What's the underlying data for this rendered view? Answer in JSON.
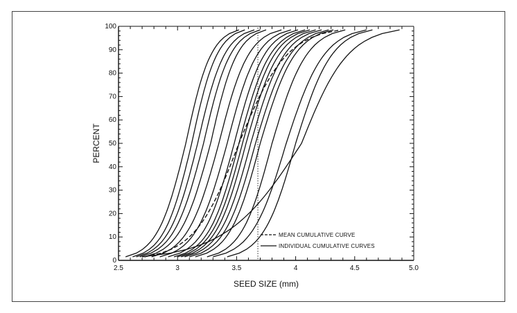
{
  "chart_data": {
    "type": "line",
    "title": "",
    "xlabel": "SEED SIZE (mm)",
    "ylabel": "PERCENT",
    "xlim": [
      2.5,
      5.0
    ],
    "ylim": [
      0,
      100
    ],
    "x_ticks": [
      2.5,
      3,
      3.5,
      4,
      4.5,
      5.0
    ],
    "x_tick_labels": [
      "2.5",
      "3",
      "3.5",
      "4",
      "4.5",
      "5.0"
    ],
    "y_ticks": [
      0,
      10,
      20,
      30,
      40,
      50,
      60,
      70,
      80,
      90,
      100
    ],
    "y_tick_labels": [
      "0",
      "10",
      "20",
      "30",
      "40",
      "50",
      "60",
      "70",
      "80",
      "90",
      "100"
    ],
    "grid": false,
    "reference_line_x": 3.68,
    "legend": {
      "placement": "bottom-right",
      "entries": [
        {
          "label": "MEAN CUMULATIVE CURVE",
          "style": "dashed"
        },
        {
          "label": "INDIVIDUAL CUMULATIVE CURVES",
          "style": "solid"
        }
      ]
    },
    "mean_curve": {
      "start": 2.72,
      "mid": 3.52,
      "end": 4.38
    },
    "individual_curves": [
      {
        "start": 2.56,
        "mid": 3.07,
        "end": 3.52
      },
      {
        "start": 2.62,
        "mid": 3.12,
        "end": 3.57
      },
      {
        "start": 2.65,
        "mid": 3.17,
        "end": 3.65
      },
      {
        "start": 2.68,
        "mid": 3.22,
        "end": 3.7
      },
      {
        "start": 2.72,
        "mid": 3.28,
        "end": 3.75
      },
      {
        "start": 2.78,
        "mid": 3.35,
        "end": 3.88
      },
      {
        "start": 2.85,
        "mid": 3.42,
        "end": 3.96
      },
      {
        "start": 2.92,
        "mid": 3.48,
        "end": 4.02
      },
      {
        "start": 2.97,
        "mid": 3.52,
        "end": 4.08
      },
      {
        "start": 3.0,
        "mid": 3.55,
        "end": 4.12
      },
      {
        "start": 3.03,
        "mid": 3.58,
        "end": 4.17
      },
      {
        "start": 3.06,
        "mid": 3.62,
        "end": 4.22
      },
      {
        "start": 3.1,
        "mid": 3.66,
        "end": 4.28
      },
      {
        "start": 3.15,
        "mid": 3.7,
        "end": 4.32
      },
      {
        "start": 3.25,
        "mid": 3.8,
        "end": 4.42
      },
      {
        "start": 3.3,
        "mid": 3.92,
        "end": 4.6
      },
      {
        "start": 3.42,
        "mid": 4.0,
        "end": 4.65
      },
      {
        "start": 2.7,
        "mid": 4.05,
        "end": 4.88
      }
    ]
  }
}
